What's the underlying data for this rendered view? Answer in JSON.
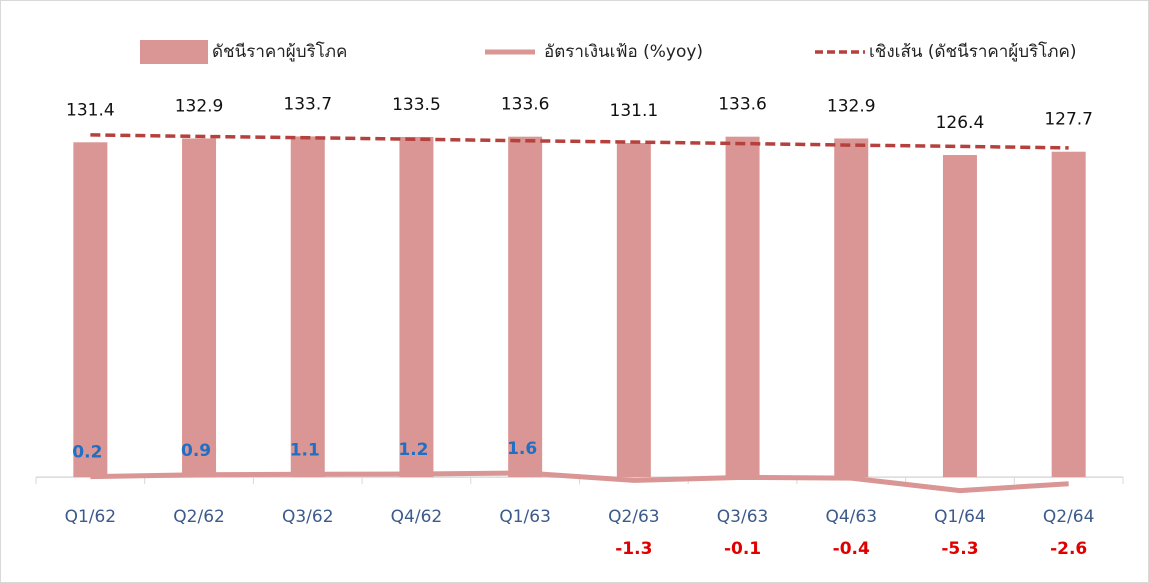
{
  "chart_data": {
    "type": "combo",
    "categories": [
      "Q1/62",
      "Q2/62",
      "Q3/62",
      "Q4/62",
      "Q1/63",
      "Q2/63",
      "Q3/63",
      "Q4/63",
      "Q1/64",
      "Q2/64"
    ],
    "series": [
      {
        "name": "ดัชนีราคาผู้บริโภค",
        "type": "bar",
        "color": "#d99694",
        "values": [
          131.4,
          132.9,
          133.7,
          133.5,
          133.6,
          131.1,
          133.6,
          132.9,
          126.4,
          127.7
        ]
      },
      {
        "name": "อัตราเงินเฟ้อ (%yoy)",
        "type": "line",
        "color": "#d99694",
        "values": [
          0.2,
          0.9,
          1.1,
          1.2,
          1.6,
          -1.3,
          -0.1,
          -0.4,
          -5.3,
          -2.6
        ]
      },
      {
        "name": "เชิงเส้น (ดัชนีราคาผู้บริโภค)",
        "type": "trend",
        "color": "#b5413e",
        "values": [
          134.3,
          133.7,
          133.2,
          132.6,
          132.0,
          131.5,
          130.9,
          130.3,
          129.8,
          129.2
        ]
      }
    ],
    "ylim": [
      -40,
      148
    ],
    "legend": "top"
  }
}
